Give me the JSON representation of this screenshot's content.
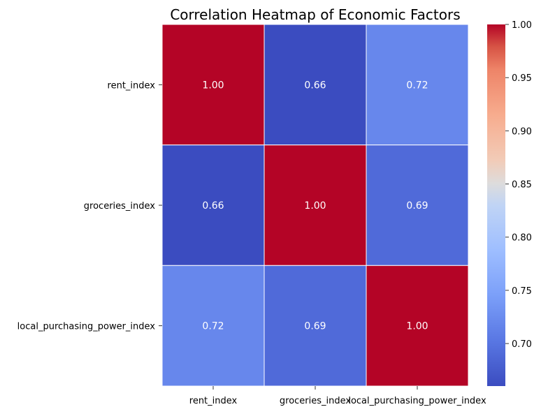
{
  "chart_data": {
    "type": "heatmap",
    "title": "Correlation Heatmap of Economic Factors",
    "xlabel": "",
    "ylabel": "",
    "x_categories": [
      "rent_index",
      "groceries_index",
      "local_purchasing_power_index"
    ],
    "y_categories": [
      "rent_index",
      "groceries_index",
      "local_purchasing_power_index"
    ],
    "values": [
      [
        1.0,
        0.66,
        0.72
      ],
      [
        0.66,
        1.0,
        0.69
      ],
      [
        0.72,
        0.69,
        1.0
      ]
    ],
    "cell_labels": [
      [
        "1.00",
        "0.66",
        "0.72"
      ],
      [
        "0.66",
        "1.00",
        "0.69"
      ],
      [
        "0.72",
        "0.69",
        "1.00"
      ]
    ],
    "colormap": "coolwarm",
    "color_range": [
      0.66,
      1.0
    ],
    "colorbar_ticks": [
      "0.70",
      "0.75",
      "0.80",
      "0.85",
      "0.90",
      "0.95",
      "1.00"
    ],
    "colorbar_tick_values": [
      0.7,
      0.75,
      0.8,
      0.85,
      0.9,
      0.95,
      1.0
    ],
    "grid": false,
    "legend": "colorbar-right"
  }
}
